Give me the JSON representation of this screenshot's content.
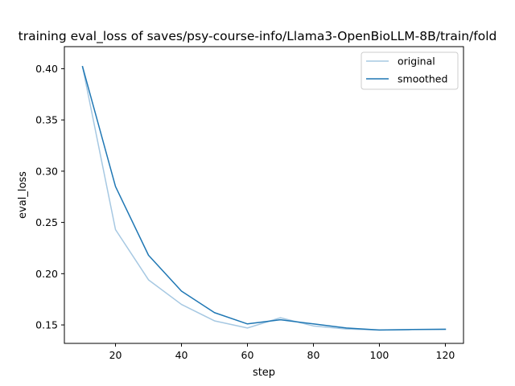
{
  "chart_data": {
    "type": "line",
    "title": "training eval_loss of saves/psy-course-info/Llama3-OpenBioLLM-8B/train/fold",
    "xlabel": "step",
    "ylabel": "eval_loss",
    "xlim": [
      4.5,
      125.5
    ],
    "ylim": [
      0.132,
      0.4215
    ],
    "xticks": [
      20,
      40,
      60,
      80,
      100,
      120
    ],
    "yticks": [
      0.15,
      0.2,
      0.25,
      0.3,
      0.35,
      0.4
    ],
    "grid": false,
    "legend_position": "top-right",
    "x": [
      10,
      20,
      30,
      40,
      50,
      60,
      70,
      80,
      90,
      100,
      110,
      120
    ],
    "series": [
      {
        "name": "original",
        "color": "#a6c8e2",
        "values": [
          0.402,
          0.243,
          0.194,
          0.17,
          0.154,
          0.147,
          0.157,
          0.149,
          0.146,
          0.145,
          0.1455,
          0.1455
        ]
      },
      {
        "name": "smoothed",
        "color": "#1f77b4",
        "values": [
          0.402,
          0.285,
          0.218,
          0.183,
          0.162,
          0.151,
          0.155,
          0.151,
          0.147,
          0.145,
          0.1455,
          0.1458
        ]
      }
    ]
  }
}
